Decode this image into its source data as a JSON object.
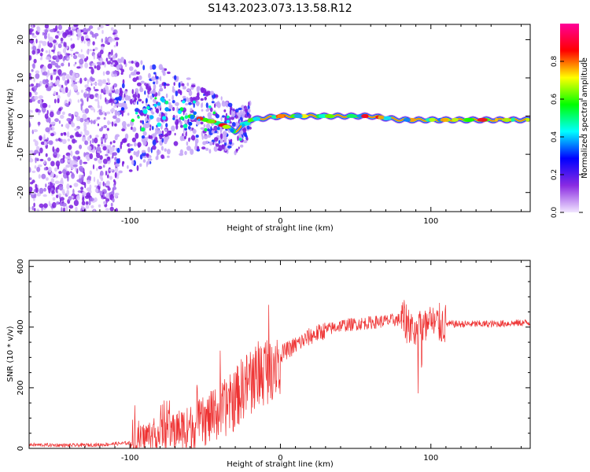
{
  "figure": {
    "title": "S143.2023.073.13.58.R12"
  },
  "chart_data": [
    {
      "type": "heatmap",
      "title": "S143.2023.073.13.58.R12",
      "xlabel": "Height of straight line (km)",
      "ylabel": "Frequency (Hz)",
      "xlim": [
        -167,
        166
      ],
      "ylim": [
        -25,
        24
      ],
      "x_ticks": [
        -100,
        0,
        100
      ],
      "y_ticks": [
        -20,
        -10,
        0,
        10,
        20
      ],
      "colorbar": {
        "label": "Normalized spectral amplitude",
        "range": [
          0,
          1
        ],
        "ticks": [
          "0.0",
          "0.2",
          "0.4",
          "0.6",
          "0.8"
        ],
        "colormap": [
          "#f2e6ff",
          "#8a2be2",
          "#0000ff",
          "#00ffff",
          "#00ff00",
          "#ffff00",
          "#ff0000",
          "#ff0099"
        ]
      },
      "ridge": {
        "x": [
          -160,
          -120,
          -100,
          -80,
          -60,
          -40,
          -30,
          -20,
          0,
          20,
          40,
          60,
          80,
          100,
          120,
          140,
          166
        ],
        "y": [
          0,
          0,
          0,
          1,
          0,
          -2,
          -4,
          -1,
          0,
          0,
          0,
          0,
          -1,
          -1,
          -1,
          -1,
          -1
        ]
      }
    },
    {
      "type": "line",
      "xlabel": "Height of straight line (km)",
      "ylabel": "SNR (10 * v/v)",
      "xlim": [
        -167,
        166
      ],
      "ylim": [
        0,
        620
      ],
      "x_ticks": [
        -100,
        0,
        100
      ],
      "y_ticks": [
        0,
        200,
        400,
        600
      ],
      "color": "#ee3030",
      "series": [
        {
          "x": [
            -167,
            -140,
            -120,
            -100,
            -95,
            -90,
            -80,
            -70,
            -60,
            -50,
            -40,
            -30,
            -25,
            -20,
            -10,
            0,
            10,
            20,
            30,
            40,
            50,
            60,
            70,
            80,
            90,
            95,
            100,
            105,
            110,
            120,
            130,
            140,
            150,
            166
          ],
          "values": [
            12,
            10,
            12,
            18,
            25,
            40,
            50,
            60,
            70,
            90,
            120,
            160,
            200,
            220,
            260,
            310,
            340,
            370,
            390,
            405,
            410,
            415,
            420,
            425,
            400,
            390,
            405,
            410,
            410,
            410,
            410,
            410,
            412,
            415
          ]
        }
      ]
    }
  ]
}
